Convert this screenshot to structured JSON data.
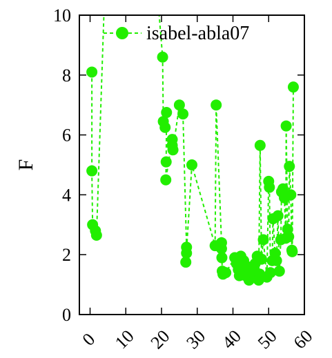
{
  "chart_data": {
    "type": "line",
    "title": "",
    "xlabel": "",
    "ylabel": "F",
    "xlim": [
      -3,
      60
    ],
    "ylim": [
      0,
      10
    ],
    "x_ticks": [
      "0",
      "10",
      "20",
      "30",
      "40",
      "50",
      "60"
    ],
    "y_ticks": [
      "0",
      "2",
      "4",
      "6",
      "8",
      "10"
    ],
    "grid": false,
    "legend_position": "top-right",
    "series": [
      {
        "name": "isabel-abla07",
        "color": "#22ee00",
        "style": "dashed with filled circle markers",
        "points": [
          [
            0.5,
            8.1
          ],
          [
            0.5,
            4.8
          ],
          [
            0.7,
            3.0
          ],
          [
            1.5,
            2.8
          ],
          [
            1.8,
            2.65
          ],
          [
            4.0,
            10.5
          ],
          [
            19.0,
            10.5
          ],
          [
            20.3,
            8.6
          ],
          [
            20.5,
            6.45
          ],
          [
            21.0,
            6.25
          ],
          [
            21.4,
            6.75
          ],
          [
            21.3,
            5.1
          ],
          [
            21.2,
            4.5
          ],
          [
            23.0,
            5.85
          ],
          [
            23.0,
            5.65
          ],
          [
            23.2,
            5.5
          ],
          [
            25.0,
            7.0
          ],
          [
            26.0,
            6.7
          ],
          [
            27.0,
            2.25
          ],
          [
            27.0,
            2.05
          ],
          [
            26.8,
            1.75
          ],
          [
            28.5,
            5.0
          ],
          [
            35.0,
            2.3
          ],
          [
            35.3,
            7.0
          ],
          [
            36.8,
            2.4
          ],
          [
            36.8,
            2.2
          ],
          [
            36.9,
            1.9
          ],
          [
            37.0,
            1.45
          ],
          [
            37.2,
            1.35
          ],
          [
            38.0,
            1.4
          ],
          [
            40.5,
            1.9
          ],
          [
            41.0,
            1.7
          ],
          [
            41.5,
            1.5
          ],
          [
            41.8,
            1.3
          ],
          [
            42.2,
            1.95
          ],
          [
            43.0,
            1.8
          ],
          [
            43.5,
            1.3
          ],
          [
            44.0,
            1.6
          ],
          [
            44.5,
            1.15
          ],
          [
            45.2,
            1.4
          ],
          [
            45.8,
            1.55
          ],
          [
            46.2,
            1.7
          ],
          [
            46.8,
            1.95
          ],
          [
            47.5,
            1.35
          ],
          [
            47.2,
            1.15
          ],
          [
            47.6,
            5.65
          ],
          [
            48.0,
            1.85
          ],
          [
            48.5,
            2.5
          ],
          [
            49.5,
            1.25
          ],
          [
            50.0,
            4.45
          ],
          [
            50.2,
            4.25
          ],
          [
            50.5,
            1.4
          ],
          [
            51.0,
            1.8
          ],
          [
            51.2,
            3.2
          ],
          [
            51.8,
            2.05
          ],
          [
            52.2,
            1.8
          ],
          [
            52.6,
            3.3
          ],
          [
            53.0,
            1.45
          ],
          [
            53.4,
            2.5
          ],
          [
            53.6,
            4.1
          ],
          [
            54.0,
            4.2
          ],
          [
            54.4,
            3.9
          ],
          [
            54.8,
            2.55
          ],
          [
            54.9,
            6.3
          ],
          [
            55.3,
            2.85
          ],
          [
            55.6,
            2.6
          ],
          [
            55.8,
            4.95
          ],
          [
            56.2,
            4.0
          ],
          [
            56.5,
            2.15
          ],
          [
            56.6,
            2.1
          ],
          [
            56.9,
            7.6
          ]
        ]
      }
    ]
  }
}
